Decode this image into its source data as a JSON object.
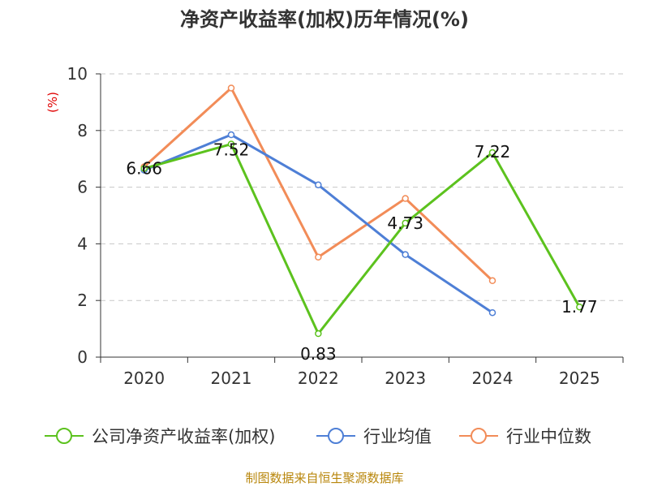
{
  "chart_data": {
    "type": "line",
    "title": "净资产收益率(加权)历年情况(%)",
    "ylabel": "(%)",
    "xlabel": "",
    "categories": [
      "2020",
      "2021",
      "2022",
      "2023",
      "2024",
      "2025"
    ],
    "ylim": [
      0,
      10
    ],
    "yticks": [
      0,
      2,
      4,
      6,
      8,
      10
    ],
    "grid": true,
    "legend_position": "bottom",
    "series": [
      {
        "name": "公司净资产收益率(加权)",
        "color": "#5cc21e",
        "values": [
          6.66,
          7.52,
          0.83,
          4.73,
          7.22,
          1.77
        ],
        "labels": [
          "6.66",
          "7.52",
          "0.83",
          "4.73",
          "7.22",
          "1.77"
        ]
      },
      {
        "name": "行业均值",
        "color": "#4e7fd6",
        "values": [
          6.6,
          7.85,
          6.08,
          3.62,
          1.57,
          null
        ]
      },
      {
        "name": "行业中位数",
        "color": "#f28c58",
        "values": [
          6.72,
          9.5,
          3.53,
          5.6,
          2.7,
          null
        ]
      }
    ]
  },
  "source_text": "制图数据来自恒生聚源数据库"
}
